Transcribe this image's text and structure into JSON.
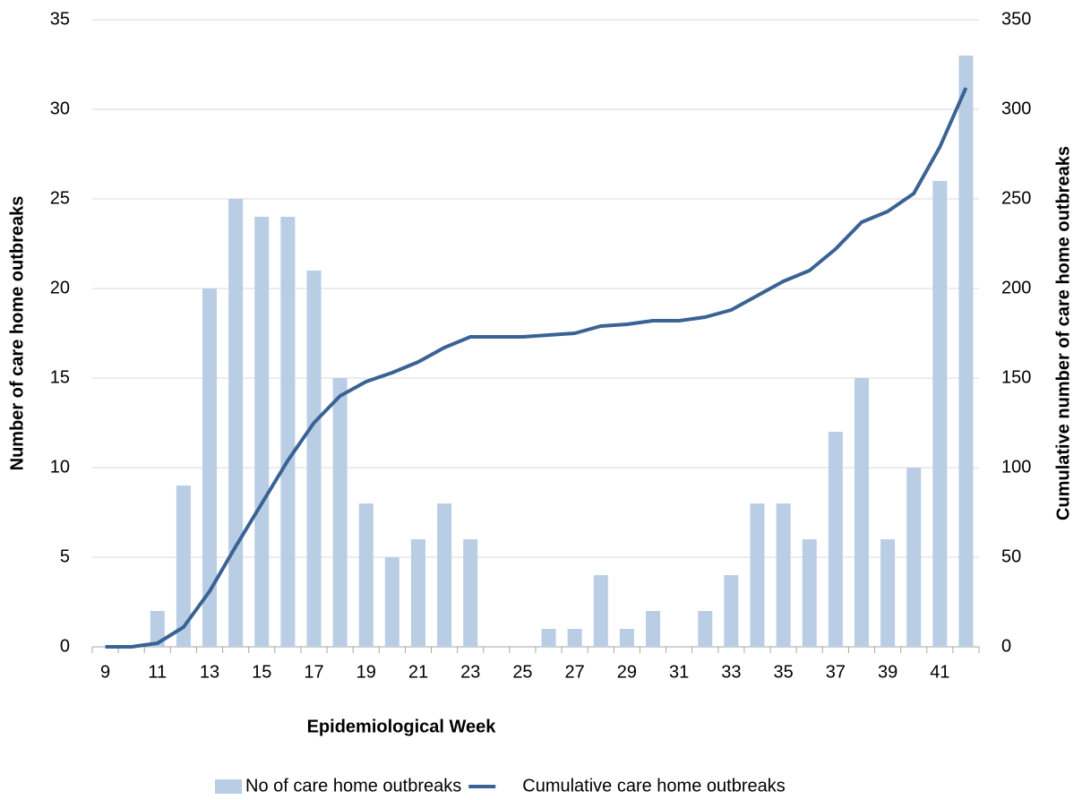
{
  "chart_data": {
    "type": "bar",
    "x_label": "Epidemiological Week",
    "y_label": "Number of care home outbreaks",
    "y2_label": "Cumulative number of care home outbreaks",
    "categories": [
      "9",
      null,
      "11",
      null,
      "13",
      null,
      "15",
      null,
      "17",
      null,
      "19",
      null,
      "21",
      null,
      "23",
      null,
      "25",
      null,
      "27",
      null,
      "29",
      null,
      "31",
      null,
      "33",
      null,
      "35",
      null,
      "37",
      null,
      "39",
      null,
      "41",
      null
    ],
    "series": [
      {
        "name": "No of care home outbreaks",
        "type": "bar",
        "color": "#b9cde5",
        "values": [
          0,
          0,
          2,
          9,
          20,
          25,
          24,
          24,
          21,
          15,
          8,
          5,
          6,
          8,
          6,
          0,
          0,
          1,
          1,
          4,
          1,
          2,
          0,
          2,
          4,
          8,
          8,
          6,
          12,
          15,
          6,
          10,
          26,
          33
        ]
      },
      {
        "name": "Cumulative care home outbreaks",
        "type": "line",
        "axis": "y2",
        "color": "#3a6394",
        "values": [
          0,
          0,
          2,
          11,
          31,
          56,
          80,
          104,
          125,
          140,
          148,
          153,
          159,
          167,
          173,
          173,
          173,
          174,
          175,
          179,
          180,
          182,
          182,
          184,
          188,
          196,
          204,
          210,
          222,
          237,
          243,
          253,
          279,
          312
        ]
      }
    ],
    "ylim": [
      0,
      35
    ],
    "yticks": [
      0,
      5,
      10,
      15,
      20,
      25,
      30,
      35
    ],
    "y2lim": [
      0,
      350
    ],
    "y2ticks": [
      0,
      50,
      100,
      150,
      200,
      250,
      300,
      350
    ],
    "grid": true,
    "legend": "bottom"
  }
}
